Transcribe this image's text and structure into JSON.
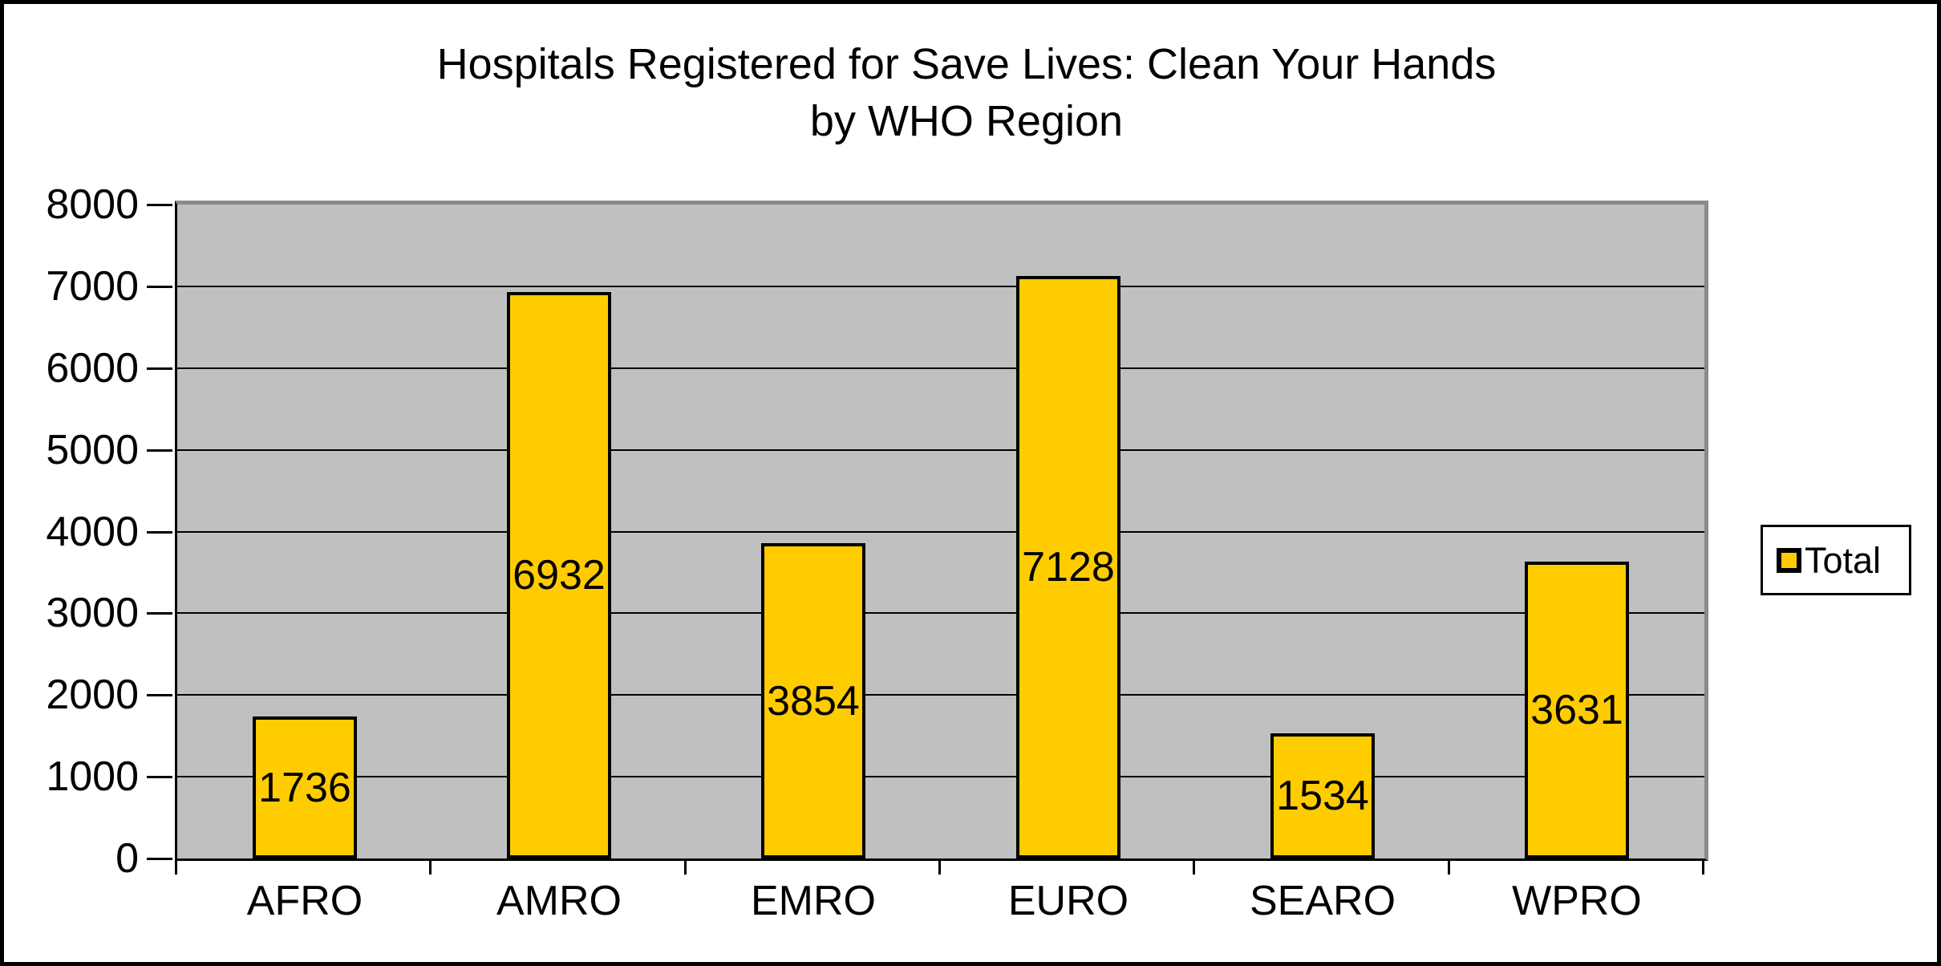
{
  "chart_data": {
    "type": "bar",
    "title_line1": "Hospitals Registered for Save Lives: Clean Your Hands",
    "title_line2": "by WHO Region",
    "categories": [
      "AFRO",
      "AMRO",
      "EMRO",
      "EURO",
      "SEARO",
      "WPRO"
    ],
    "series": [
      {
        "name": "Total",
        "values": [
          1736,
          6932,
          3854,
          7128,
          1534,
          3631
        ]
      }
    ],
    "data_labels_shown": true,
    "xlabel": "",
    "ylabel": "",
    "ylim": [
      0,
      8000
    ],
    "ytick_step": 1000,
    "ytick_labels": [
      "0",
      "1000",
      "2000",
      "3000",
      "4000",
      "5000",
      "6000",
      "7000",
      "8000"
    ],
    "grid": true,
    "legend_position": "middle-right",
    "colors": {
      "bar_fill": "#FFCC00",
      "bar_border": "#000000",
      "plot_background": "#C0C0C0",
      "plot_border": "#8a8a8a",
      "gridline": "#000000",
      "text": "#000000"
    }
  },
  "legend": {
    "label": "Total"
  }
}
